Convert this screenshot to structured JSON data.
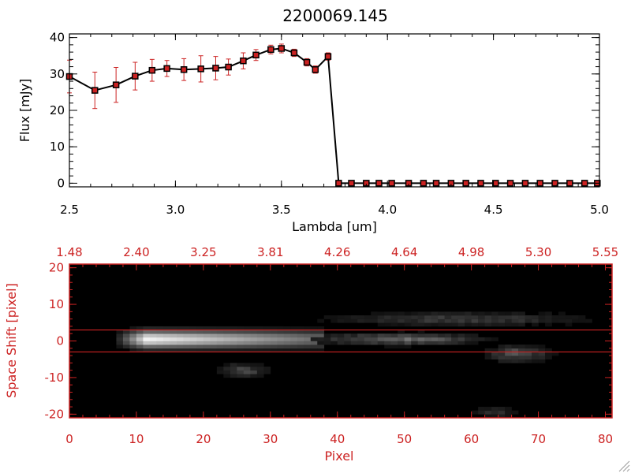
{
  "chart_data": [
    {
      "type": "line",
      "title": "2200069.145",
      "xlabel": "Lambda [um]",
      "ylabel": "Flux [mJy]",
      "xlim": [
        2.5,
        5.0
      ],
      "ylim": [
        -1,
        41
      ],
      "xticks": [
        "2.5",
        "3.0",
        "3.5",
        "4.0",
        "4.5",
        "5.0"
      ],
      "yticks": [
        "0",
        "10",
        "20",
        "30",
        "40"
      ],
      "grid": false,
      "series": [
        {
          "x": [
            2.5,
            2.62,
            2.72,
            2.81,
            2.89,
            2.96,
            3.04,
            3.12,
            3.19,
            3.25,
            3.32,
            3.38,
            3.45,
            3.5,
            3.56,
            3.62,
            3.66,
            3.72,
            3.77,
            3.83,
            3.9,
            3.96,
            4.02,
            4.1,
            4.17,
            4.23,
            4.3,
            4.37,
            4.44,
            4.51,
            4.58,
            4.65,
            4.72,
            4.79,
            4.86,
            4.93,
            4.99
          ],
          "y": [
            29.3,
            25.5,
            27.0,
            29.4,
            31.0,
            31.5,
            31.2,
            31.4,
            31.6,
            31.9,
            33.6,
            35.2,
            36.7,
            37.0,
            35.8,
            33.2,
            31.2,
            34.8,
            0,
            0,
            0,
            0,
            0,
            0,
            0,
            0,
            0,
            0,
            0,
            0,
            0,
            0,
            0,
            0,
            0,
            0,
            0
          ],
          "yerr": [
            4.5,
            5.0,
            4.8,
            3.8,
            3.0,
            2.2,
            3.0,
            3.6,
            3.2,
            2.2,
            2.2,
            1.5,
            1.2,
            1.2,
            1.0,
            1.0,
            1.0,
            1.0,
            0,
            0,
            0,
            0,
            0,
            0,
            0,
            0,
            0,
            0,
            0,
            0,
            0,
            0,
            0,
            0,
            0,
            0,
            0
          ],
          "color": "#000000",
          "marker_color": "#cc2222",
          "errorbar_color": "#cc2222"
        }
      ]
    },
    {
      "type": "heatmap",
      "xlabel": "Pixel",
      "ylabel": "Space Shift [pixel]",
      "xlim": [
        0,
        81
      ],
      "ylim": [
        -21,
        21
      ],
      "xticks": [
        "0",
        "10",
        "20",
        "30",
        "40",
        "50",
        "60",
        "70",
        "80"
      ],
      "yticks": [
        "-20",
        "-10",
        "0",
        "10",
        "20"
      ],
      "top_axis_ticks": [
        "1.48",
        "2.40",
        "3.25",
        "3.81",
        "4.26",
        "4.64",
        "4.98",
        "5.30",
        "5.55"
      ],
      "aperture_lines_y": [
        3,
        -3
      ],
      "colormap": "grayscale",
      "frame_color": "#cc2222",
      "features": [
        {
          "name": "main-trace-bright",
          "x": [
            7,
            36
          ],
          "y": [
            -2,
            2
          ],
          "peak_x": 11,
          "level": 0.95
        },
        {
          "name": "trace-tail",
          "x": [
            36,
            62
          ],
          "y": [
            -1,
            1
          ],
          "level": 0.45
        },
        {
          "name": "upper-noise-band",
          "x": [
            36,
            80
          ],
          "y": [
            4,
            7
          ],
          "level": 0.25
        },
        {
          "name": "blob-lower-left",
          "x": [
            22,
            29
          ],
          "y": [
            -10,
            -7
          ],
          "level": 0.3
        },
        {
          "name": "blob-right",
          "x": [
            62,
            71
          ],
          "y": [
            -6,
            -2
          ],
          "level": 0.35
        },
        {
          "name": "blob-bottom",
          "x": [
            60,
            66
          ],
          "y": [
            -21,
            -19
          ],
          "level": 0.2
        }
      ]
    }
  ]
}
